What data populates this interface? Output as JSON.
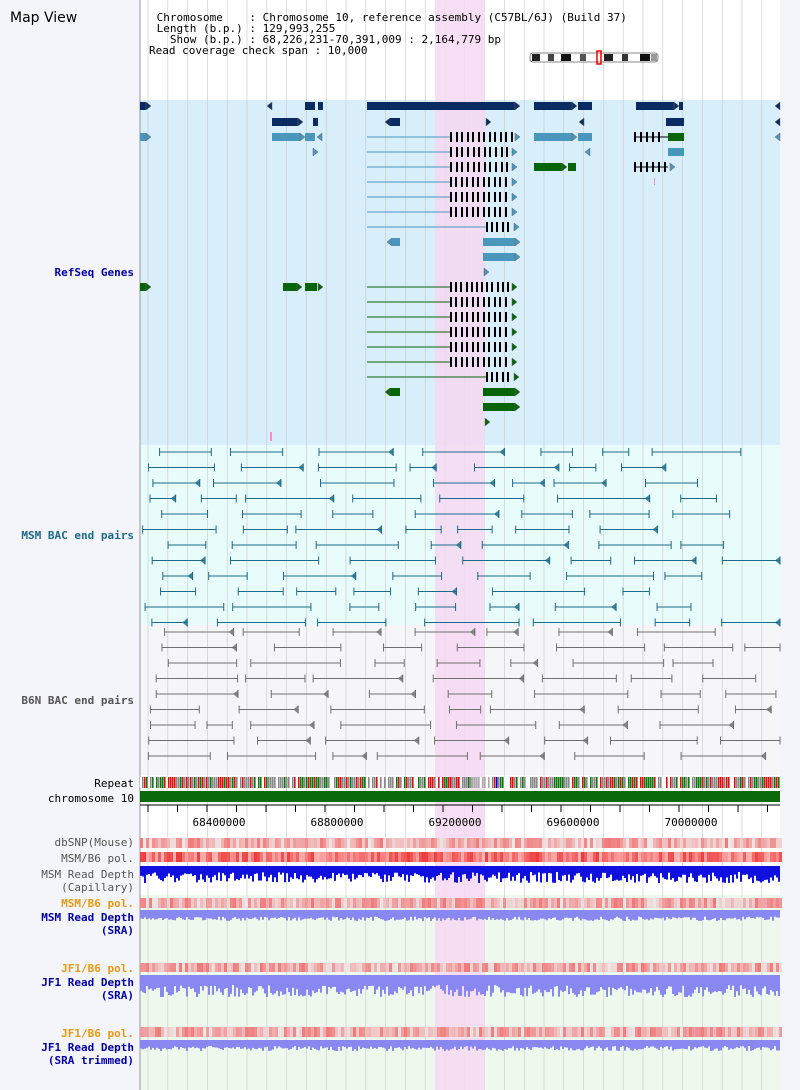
{
  "header": {
    "view_title": "Map View",
    "chromosome_line": " Chromosome    : Chromosome 10, reference assembly (C57BL/6J) (Build 37)",
    "length_line": " Length (b.p.) : 129,993,255",
    "show_line": "   Show (b.p.) : 68,226,231-70,391,009 : 2,164,779 bp",
    "coverage_line": "Read coverage check span : 10,000"
  },
  "tracks": {
    "refseq": "RefSeq Genes",
    "msm_bac": "MSM BAC end pairs",
    "b6n_bac": "B6N BAC end pairs",
    "repeat": "Repeat",
    "chromosome": "chromosome 10",
    "dbsnp": "dbSNP(Mouse)",
    "msm_b6_pol_1": "MSM/B6 pol.",
    "msm_depth_cap_1": "MSM Read Depth",
    "msm_depth_cap_2": "(Capillary)",
    "msm_b6_pol_2": "MSM/B6 pol.",
    "msm_depth_sra_1": "MSM Read Depth",
    "msm_depth_sra_2": "(SRA)",
    "jf1_b6_pol_1": "JF1/B6 pol.",
    "jf1_depth_sra_1": "JF1 Read Depth",
    "jf1_depth_sra_2": "(SRA)",
    "jf1_b6_pol_2": "JF1/B6 pol.",
    "jf1_depth_trim_1": "JF1 Read Depth",
    "jf1_depth_trim_2": "(SRA trimmed)"
  },
  "axis": {
    "ticks": [
      "68400000",
      "68800000",
      "69200000",
      "69600000",
      "70000000"
    ]
  },
  "colors": {
    "refseq_bg": "#d8eefa",
    "msm_bg": "#e8fcfc",
    "highlight": "#f6d8f2",
    "gene_dark": "#0b2c62",
    "gene_light": "#4a97bd",
    "gene_green": "#086408",
    "msm_line": "#1c6a8a",
    "b6n_line": "#707070",
    "depth_blue": "#1010e0",
    "depth_light": "#8888f0",
    "pol_red": "#ee3333",
    "orange_label": "#e89a10",
    "blue_label": "#0000aa"
  }
}
